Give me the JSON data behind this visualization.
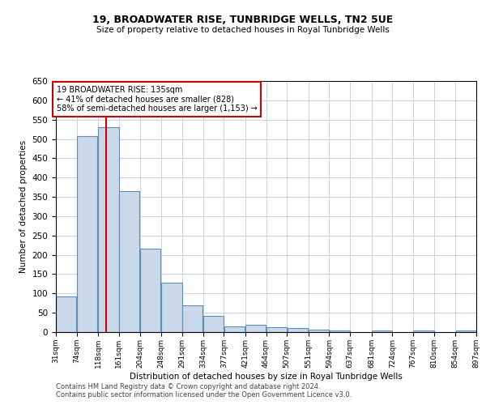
{
  "title": "19, BROADWATER RISE, TUNBRIDGE WELLS, TN2 5UE",
  "subtitle": "Size of property relative to detached houses in Royal Tunbridge Wells",
  "xlabel": "Distribution of detached houses by size in Royal Tunbridge Wells",
  "ylabel": "Number of detached properties",
  "property_size": 135,
  "annotation_title": "19 BROADWATER RISE: 135sqm",
  "annotation_line1": "← 41% of detached houses are smaller (828)",
  "annotation_line2": "58% of semi-detached houses are larger (1,153) →",
  "footer1": "Contains HM Land Registry data © Crown copyright and database right 2024.",
  "footer2": "Contains public sector information licensed under the Open Government Licence v3.0.",
  "bin_edges": [
    31,
    74,
    118,
    161,
    204,
    248,
    291,
    334,
    377,
    421,
    464,
    507,
    551,
    594,
    637,
    681,
    724,
    767,
    810,
    854,
    897
  ],
  "bar_heights": [
    93,
    507,
    530,
    365,
    215,
    127,
    70,
    42,
    15,
    19,
    12,
    11,
    7,
    5,
    0,
    5,
    0,
    4,
    0,
    4
  ],
  "bar_color": "#c9d9ea",
  "bar_edge_color": "#5b8db8",
  "red_line_color": "#cc0000",
  "annotation_box_color": "#cc0000",
  "background_color": "#ffffff",
  "grid_color": "#c8d4e0",
  "ylim": [
    0,
    650
  ],
  "yticks": [
    0,
    50,
    100,
    150,
    200,
    250,
    300,
    350,
    400,
    450,
    500,
    550,
    600,
    650
  ]
}
